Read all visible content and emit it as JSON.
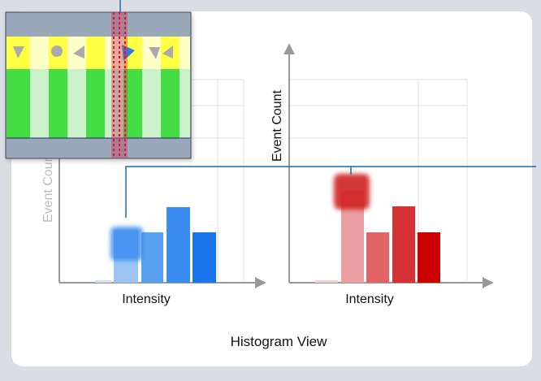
{
  "panels": [
    {
      "y_label": "Event Count",
      "x_label": "Intensity"
    },
    {
      "y_label": "Event Count",
      "x_label": "Intensity"
    }
  ],
  "caption": "Histogram View"
}
